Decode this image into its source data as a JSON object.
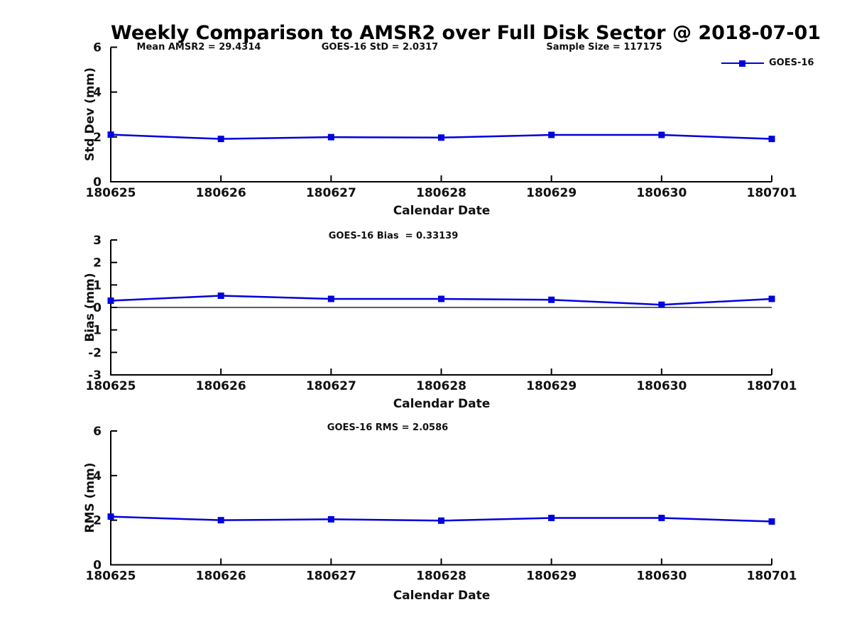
{
  "title": "Weekly Comparison to AMSR2 over Full Disk Sector @ 2018-07-01",
  "annotations": {
    "mean_amsr2": "Mean AMSR2 = 29.4314",
    "goes16_std": "GOES-16 StD = 2.0317",
    "sample_size": "Sample Size = 117175"
  },
  "legend": {
    "label": "GOES-16",
    "position": "top-right",
    "marker": "square"
  },
  "colors": {
    "line": "#0000dd",
    "axis": "#000000",
    "text": "#111111",
    "background": "#ffffff"
  },
  "chart_data": [
    {
      "type": "line",
      "title": "",
      "ylabel": "Std Dev (mm)",
      "xlabel": "Calendar Date",
      "ylim": [
        0,
        6
      ],
      "yticks": [
        0,
        2,
        4,
        6
      ],
      "zero_line": false,
      "grid": false,
      "categories": [
        "180625",
        "180626",
        "180627",
        "180628",
        "180629",
        "180630",
        "180701"
      ],
      "series": [
        {
          "name": "GOES-16",
          "values": [
            2.1,
            1.91,
            1.99,
            1.97,
            2.09,
            2.09,
            1.91
          ]
        }
      ]
    },
    {
      "type": "line",
      "title": "GOES-16 Bias  = 0.33139",
      "ylabel": "Bias (mm)",
      "xlabel": "Calendar Date",
      "ylim": [
        -3,
        3
      ],
      "yticks": [
        -3,
        -2,
        -1,
        0,
        1,
        2,
        3
      ],
      "zero_line": true,
      "grid": false,
      "categories": [
        "180625",
        "180626",
        "180627",
        "180628",
        "180629",
        "180630",
        "180701"
      ],
      "series": [
        {
          "name": "GOES-16",
          "values": [
            0.3,
            0.52,
            0.38,
            0.38,
            0.34,
            0.12,
            0.38
          ]
        }
      ]
    },
    {
      "type": "line",
      "title": "GOES-16 RMS = 2.0586",
      "ylabel": "RMS (mm)",
      "xlabel": "Calendar Date",
      "ylim": [
        0,
        6
      ],
      "yticks": [
        0,
        2,
        4,
        6
      ],
      "zero_line": false,
      "grid": false,
      "categories": [
        "180625",
        "180626",
        "180627",
        "180628",
        "180629",
        "180630",
        "180701"
      ],
      "series": [
        {
          "name": "GOES-16",
          "values": [
            2.16,
            2.0,
            2.04,
            1.98,
            2.1,
            2.1,
            1.94
          ]
        }
      ]
    }
  ]
}
